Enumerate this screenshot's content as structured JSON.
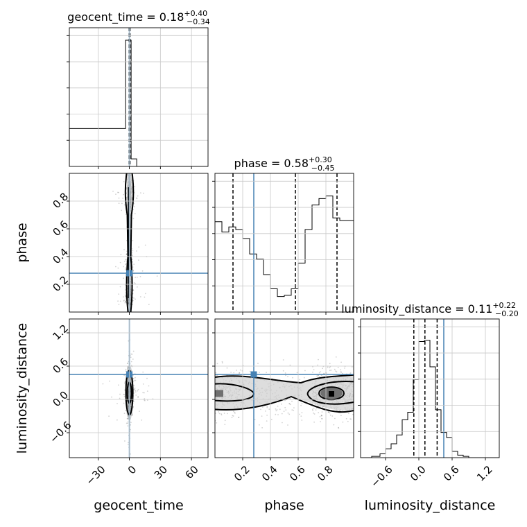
{
  "chart_data": {
    "type": "corner",
    "parameters": [
      "geocent_time",
      "phase",
      "luminosity_distance"
    ],
    "titles": [
      {
        "param": "geocent_time",
        "text": "geocent_time = 0.18",
        "plus": "+0.40",
        "minus": "−0.34"
      },
      {
        "param": "phase",
        "text": "phase = 0.58",
        "plus": "+0.30",
        "minus": "−0.45"
      },
      {
        "param": "luminosity_distance",
        "text": "luminosity_distance = 0.11",
        "plus": "+0.22",
        "minus": "−0.20"
      }
    ],
    "axis_labels": {
      "x": [
        "geocent_time",
        "phase",
        "luminosity_distance"
      ],
      "y": [
        "phase",
        "luminosity_distance"
      ]
    },
    "ranges": {
      "geocent_time": [
        -58,
        76
      ],
      "phase": [
        0.0,
        1.0
      ],
      "luminosity_distance": [
        -1.05,
        1.45
      ]
    },
    "ticks": {
      "geocent_time": {
        "values": [
          -30,
          0,
          30,
          60
        ],
        "labels": [
          "−30",
          "0",
          "30",
          "60"
        ]
      },
      "phase": {
        "values": [
          0.2,
          0.4,
          0.6,
          0.8
        ],
        "labels": [
          "0.2",
          "0.4",
          "0.6",
          "0.8"
        ]
      },
      "luminosity_distance": {
        "values": [
          -0.6,
          0.0,
          0.6,
          1.2
        ],
        "labels": [
          "−0.6",
          "0.0",
          "0.6",
          "1.2"
        ]
      }
    },
    "truths": {
      "geocent_time": 0.0,
      "phase": 0.28,
      "luminosity_distance": 0.45
    },
    "quantiles": {
      "geocent_time": [
        -0.16,
        0.18,
        0.58
      ],
      "phase": [
        0.13,
        0.58,
        0.88
      ],
      "luminosity_distance": [
        -0.09,
        0.11,
        0.33
      ]
    },
    "hist_1d": {
      "geocent_time": {
        "edges": [
          -58,
          -3.7,
          1.7,
          7.1,
          76
        ],
        "counts": [
          0.3,
          1.0,
          0.06,
          0.0
        ]
      },
      "phase": {
        "bins": 20,
        "counts": [
          0.7,
          0.62,
          0.66,
          0.64,
          0.57,
          0.45,
          0.41,
          0.29,
          0.18,
          0.12,
          0.13,
          0.18,
          0.38,
          0.64,
          0.83,
          0.88,
          0.9,
          0.73,
          0.71,
          0.71
        ]
      },
      "luminosity_distance": {
        "edges": [
          -1.05,
          -0.85,
          -0.7,
          -0.6,
          -0.5,
          -0.4,
          -0.3,
          -0.2,
          -0.1,
          0.0,
          0.1,
          0.2,
          0.3,
          0.4,
          0.5,
          0.6,
          0.7,
          0.8,
          0.9,
          1.45
        ],
        "counts": [
          0.0,
          0.01,
          0.03,
          0.07,
          0.11,
          0.18,
          0.3,
          0.36,
          0.62,
          0.92,
          0.93,
          0.72,
          0.38,
          0.2,
          0.16,
          0.05,
          0.02,
          0.01,
          0.0
        ]
      }
    },
    "grid": true,
    "colors": {
      "truth": "#4682b4",
      "hist": "#000000",
      "points": "#000000"
    }
  }
}
